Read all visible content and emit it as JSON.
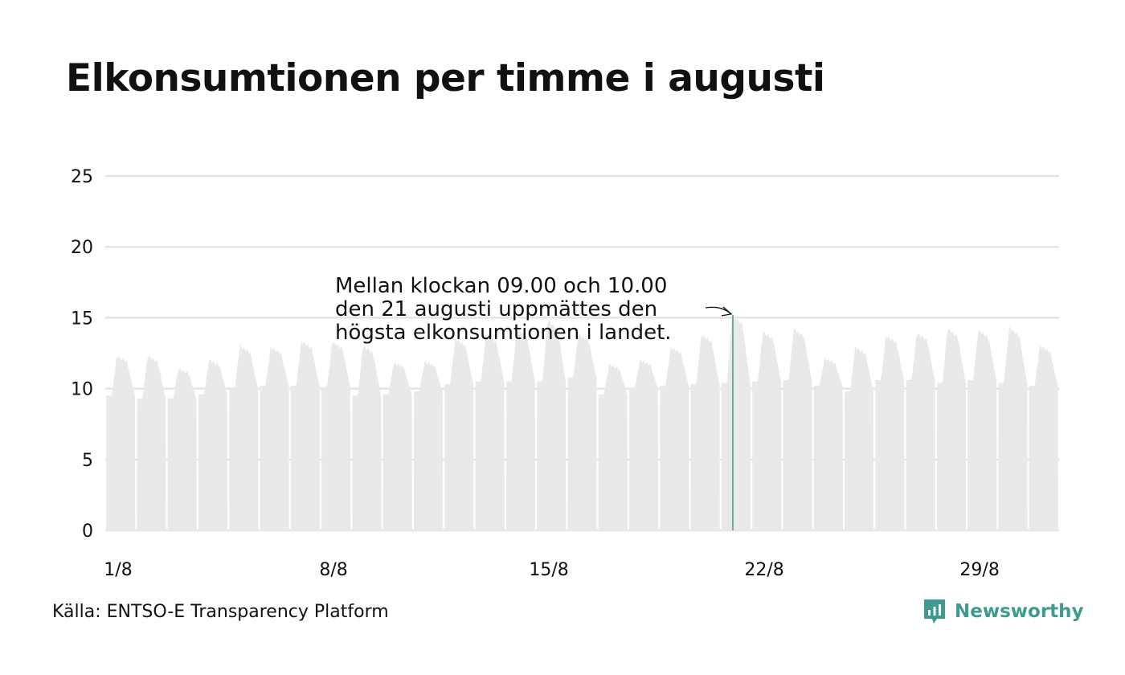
{
  "title": "Elkonsumtionen per timme i augusti",
  "source": "Källa: ENTSO-E Transparency Platform",
  "brand": {
    "name": "Newsworthy",
    "logo_icon": "newsworthy-bar-chart-icon",
    "color": "#3d9b8f"
  },
  "colors": {
    "area": "#e9e9e9",
    "grid": "#e4e4e4",
    "highlight": "#3d9b8f",
    "text": "#111111"
  },
  "chart_data": {
    "type": "area",
    "ylim": [
      0,
      25
    ],
    "y_ticks": [
      "0",
      "5",
      "10",
      "15",
      "20",
      "25"
    ],
    "x_ticks": [
      {
        "label": "1/8",
        "day": 1
      },
      {
        "label": "8/8",
        "day": 8
      },
      {
        "label": "15/8",
        "day": 15
      },
      {
        "label": "22/8",
        "day": 22
      },
      {
        "label": "29/8",
        "day": 29
      }
    ],
    "days": 31,
    "daily_profile": [
      {
        "day": 1,
        "night": 9.5,
        "peak": 12.3
      },
      {
        "day": 2,
        "night": 9.3,
        "peak": 12.3
      },
      {
        "day": 3,
        "night": 9.3,
        "peak": 11.4
      },
      {
        "day": 4,
        "night": 9.6,
        "peak": 12.0
      },
      {
        "day": 5,
        "night": 10.0,
        "peak": 13.0
      },
      {
        "day": 6,
        "night": 10.2,
        "peak": 12.9
      },
      {
        "day": 7,
        "night": 10.2,
        "peak": 13.3
      },
      {
        "day": 8,
        "night": 10.1,
        "peak": 13.3
      },
      {
        "day": 9,
        "night": 9.5,
        "peak": 13.0
      },
      {
        "day": 10,
        "night": 9.6,
        "peak": 11.8
      },
      {
        "day": 11,
        "night": 9.8,
        "peak": 11.9
      },
      {
        "day": 12,
        "night": 10.3,
        "peak": 13.5
      },
      {
        "day": 13,
        "night": 10.5,
        "peak": 13.8
      },
      {
        "day": 14,
        "night": 10.5,
        "peak": 14.2
      },
      {
        "day": 15,
        "night": 10.5,
        "peak": 14.8
      },
      {
        "day": 16,
        "night": 10.8,
        "peak": 13.8
      },
      {
        "day": 17,
        "night": 9.6,
        "peak": 11.7
      },
      {
        "day": 18,
        "night": 10.0,
        "peak": 12.0
      },
      {
        "day": 19,
        "night": 10.2,
        "peak": 12.9
      },
      {
        "day": 20,
        "night": 10.3,
        "peak": 13.8
      },
      {
        "day": 21,
        "night": 10.4,
        "peak": 15.2
      },
      {
        "day": 22,
        "night": 10.5,
        "peak": 14.0
      },
      {
        "day": 23,
        "night": 10.6,
        "peak": 14.2
      },
      {
        "day": 24,
        "night": 10.2,
        "peak": 12.1
      },
      {
        "day": 25,
        "night": 9.8,
        "peak": 12.9
      },
      {
        "day": 26,
        "night": 10.6,
        "peak": 13.7
      },
      {
        "day": 27,
        "night": 10.6,
        "peak": 13.9
      },
      {
        "day": 28,
        "night": 10.4,
        "peak": 14.2
      },
      {
        "day": 29,
        "night": 10.6,
        "peak": 14.1
      },
      {
        "day": 30,
        "night": 10.4,
        "peak": 14.3
      },
      {
        "day": 31,
        "night": 10.2,
        "peak": 13.0
      }
    ],
    "highlight": {
      "day": 21,
      "hour": 9,
      "value": 15.2
    },
    "annotation": [
      "Mellan klockan 09.00 och 10.00",
      "den 21 augusti uppmättes den",
      "högsta elkonsumtionen i landet."
    ]
  }
}
